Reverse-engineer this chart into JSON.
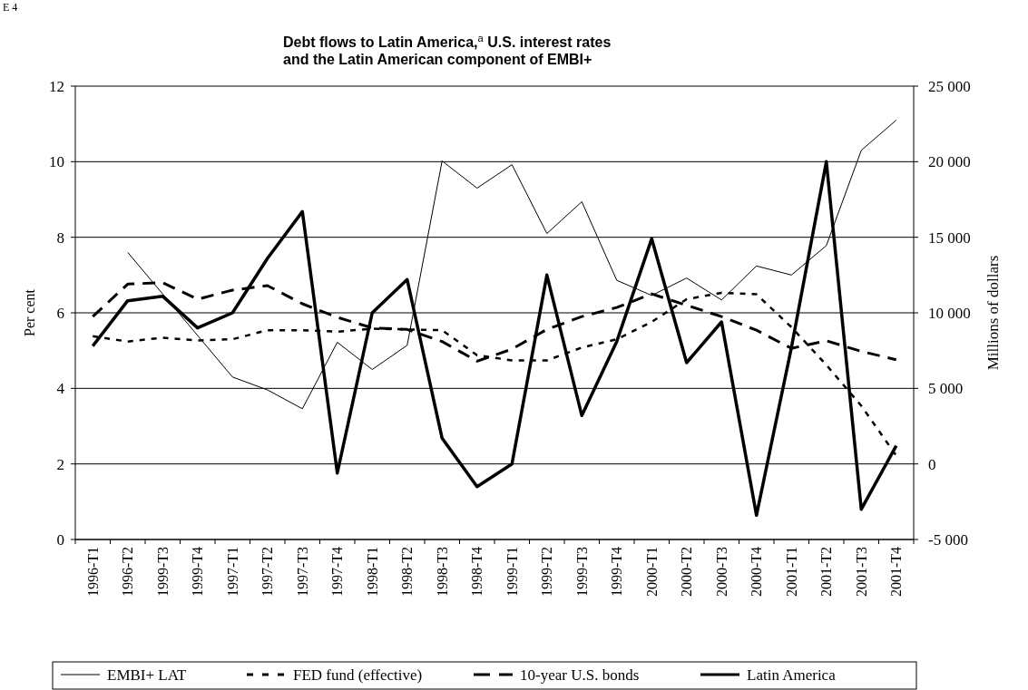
{
  "chart_data": {
    "type": "line",
    "title": "Debt flows to Latin America,$^{a}$ U.S. interest rates\nand the Latin American component of EMBI+",
    "ylabel": "Per cent",
    "y2label": "Millions of dollars",
    "annotations": [
      "E 4"
    ],
    "categories": [
      "1996-T1",
      "1996-T2",
      "1999-T3",
      "1999-T4",
      "1997-T1",
      "1997-T2",
      "1997-T3",
      "1997-T4",
      "1998-T1",
      "1998-T2",
      "1998-T3",
      "1998-T4",
      "1999-T1",
      "1999-T2",
      "1999-T3",
      "1999-T4",
      "2000-T1",
      "2000-T2",
      "2000-T3",
      "2000-T4",
      "2001-T1",
      "2001-T2",
      "2001-T3",
      "2001-T4"
    ],
    "series": [
      {
        "name": "EMBI+ LAT",
        "color": "#000000",
        "line_style": "solid",
        "values": [
          null,
          7.6,
          6.5,
          5.4,
          4.3,
          3.96,
          3.46,
          5.22,
          4.5,
          5.14,
          10.02,
          9.3,
          9.92,
          8.1,
          8.94,
          6.86,
          6.46,
          6.92,
          6.34,
          7.24,
          7.0,
          7.78,
          10.3,
          11.1
        ]
      },
      {
        "name": "FED fund (effective)",
        "color": "#000000",
        "line_style": "dotted",
        "values": [
          5.38,
          5.24,
          5.34,
          5.27,
          5.3,
          5.54,
          5.54,
          5.5,
          5.58,
          5.56,
          5.54,
          4.88,
          4.74,
          4.74,
          5.08,
          5.3,
          5.76,
          6.36,
          6.53,
          6.49,
          5.62,
          4.62,
          3.54,
          2.22
        ]
      },
      {
        "name": "10-year U.S. bonds",
        "color": "#000000",
        "line_style": "dashed",
        "values": [
          5.9,
          6.76,
          6.8,
          6.36,
          6.6,
          6.72,
          6.24,
          5.88,
          5.6,
          5.56,
          5.24,
          4.72,
          5.04,
          5.56,
          5.9,
          6.14,
          6.5,
          6.2,
          5.9,
          5.54,
          5.06,
          5.26,
          4.98,
          4.76
        ]
      },
      {
        "name": "Latin America",
        "color": "#000000",
        "line_style": "solid",
        "axis": "y2",
        "values": [
          7800,
          10800,
          11100,
          9000,
          10000,
          13600,
          16700,
          -600,
          10000,
          12200,
          1700,
          -1500,
          0,
          12500,
          3200,
          8100,
          14900,
          6700,
          9400,
          -3400,
          7700,
          20000,
          -3000,
          1200
        ]
      }
    ],
    "ylim": [
      0,
      12
    ],
    "yticks": [
      0,
      2,
      4,
      6,
      8,
      10,
      12
    ],
    "y2lim": [
      -5000,
      25000
    ],
    "y2ticks": [
      {
        "value": -5000,
        "label": "-5 000"
      },
      0,
      {
        "value": 5000,
        "label": "5 000"
      },
      {
        "value": 10000,
        "label": "10 000"
      },
      {
        "value": 15000,
        "label": "15 000"
      },
      {
        "value": 20000,
        "label": "20 000"
      },
      {
        "value": 25000,
        "label": "25 000"
      }
    ],
    "grid": "y",
    "legend": "bottom"
  }
}
